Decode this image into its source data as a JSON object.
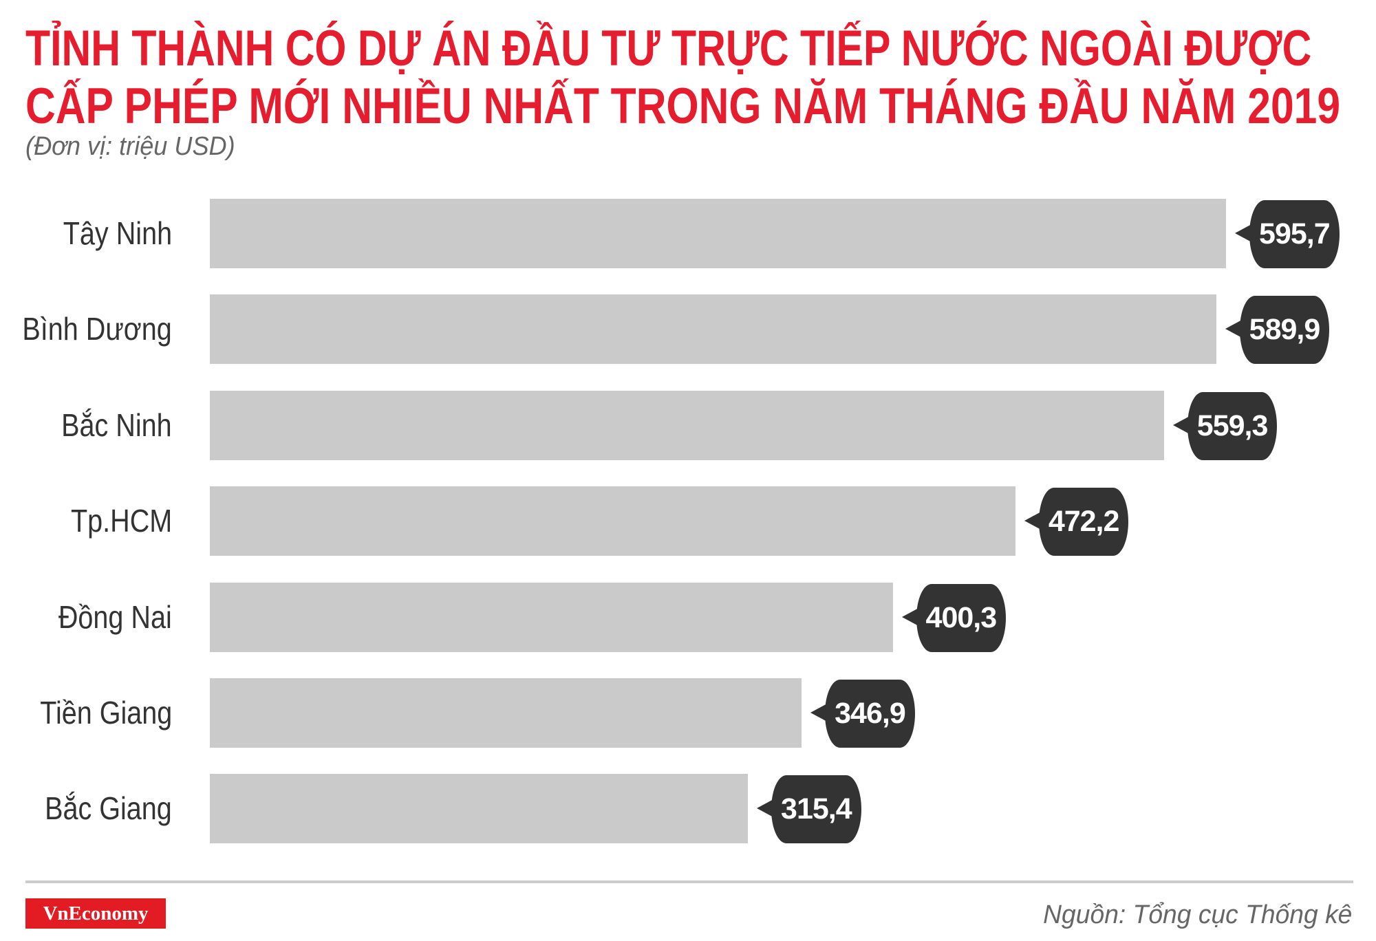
{
  "header": {
    "title_line_1": "TỈNH THÀNH CÓ DỰ ÁN ĐẦU TƯ TRỰC TIẾP NƯỚC NGOÀI ĐƯỢC",
    "title_line_2": "CẤP PHÉP MỚI NHIỀU NHẤT TRONG NĂM THÁNG ĐẦU NĂM 2019",
    "subtitle": "(Đơn vị: triệu USD)"
  },
  "footer": {
    "logo": "VnEconomy",
    "source": "Nguồn: Tổng cục Thống kê"
  },
  "colors": {
    "title": "#e51d2e",
    "bar": "#cbcacb",
    "bubble": "#333333",
    "logo_bg": "#e31b23",
    "text_muted": "#666666"
  },
  "chart_data": {
    "type": "bar",
    "orientation": "horizontal",
    "title": "TỈNH THÀNH CÓ DỰ ÁN ĐẦU TƯ TRỰC TIẾP NƯỚC NGOÀI ĐƯỢC CẤP PHÉP MỚI NHIỀU NHẤT TRONG NĂM THÁNG ĐẦU NĂM 2019",
    "subtitle": "(Đơn vị: triệu USD)",
    "xlabel": "",
    "ylabel": "",
    "unit": "triệu USD",
    "grid": false,
    "legend": null,
    "categories": [
      "Tây Ninh",
      "Bình Dương",
      "Bắc Ninh",
      "Tp.HCM",
      "Đồng Nai",
      "Tiền Giang",
      "Bắc Giang"
    ],
    "values": [
      595.7,
      589.9,
      559.3,
      472.2,
      400.3,
      346.9,
      315.4
    ],
    "value_labels": [
      "595,7",
      "589,9",
      "559,3",
      "472,2",
      "400,3",
      "346,9",
      "315,4"
    ],
    "source": "Nguồn: Tổng cục Thống kê"
  }
}
